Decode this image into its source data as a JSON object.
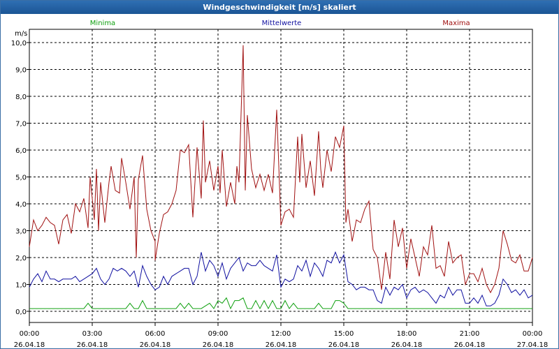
{
  "window": {
    "title": "Windgeschwindigkeit [m/s] skaliert"
  },
  "chart_data": {
    "type": "line",
    "title": "Windgeschwindigkeit [m/s] skaliert",
    "ylabel": "m/s",
    "ylim": [
      -0.3,
      10.5
    ],
    "y_ticks": [
      "0,0",
      "1,0",
      "2,0",
      "3,0",
      "4,0",
      "5,0",
      "6,0",
      "7,0",
      "8,0",
      "9,0",
      "10,0"
    ],
    "x_ticks": [
      {
        "time": "00:00",
        "date": "26.04.18"
      },
      {
        "time": "03:00",
        "date": "26.04.18"
      },
      {
        "time": "06:00",
        "date": "26.04.18"
      },
      {
        "time": "09:00",
        "date": "26.04.18"
      },
      {
        "time": "12:00",
        "date": "26.04.18"
      },
      {
        "time": "15:00",
        "date": "26.04.18"
      },
      {
        "time": "18:00",
        "date": "26.04.18"
      },
      {
        "time": "21:00",
        "date": "26.04.18"
      },
      {
        "time": "00:00",
        "date": "27.04.18"
      }
    ],
    "x_hours_range": [
      0,
      24
    ],
    "grid": true,
    "series": [
      {
        "name": "Maxima",
        "color": "#a01010",
        "points": [
          [
            0.0,
            2.4
          ],
          [
            0.2,
            3.4
          ],
          [
            0.4,
            3.0
          ],
          [
            0.6,
            3.2
          ],
          [
            0.8,
            3.5
          ],
          [
            1.0,
            3.3
          ],
          [
            1.2,
            3.2
          ],
          [
            1.4,
            2.5
          ],
          [
            1.6,
            3.4
          ],
          [
            1.8,
            3.6
          ],
          [
            2.0,
            2.9
          ],
          [
            2.2,
            4.0
          ],
          [
            2.4,
            3.7
          ],
          [
            2.6,
            4.2
          ],
          [
            2.8,
            3.1
          ],
          [
            2.9,
            5.0
          ],
          [
            3.1,
            3.4
          ],
          [
            3.2,
            5.3
          ],
          [
            3.3,
            3.0
          ],
          [
            3.4,
            4.8
          ],
          [
            3.6,
            3.3
          ],
          [
            3.8,
            4.8
          ],
          [
            3.9,
            5.4
          ],
          [
            4.1,
            4.5
          ],
          [
            4.3,
            4.4
          ],
          [
            4.4,
            5.7
          ],
          [
            4.6,
            4.8
          ],
          [
            4.8,
            3.8
          ],
          [
            5.0,
            5.0
          ],
          [
            5.1,
            2.0
          ],
          [
            5.2,
            4.9
          ],
          [
            5.4,
            5.8
          ],
          [
            5.6,
            3.8
          ],
          [
            5.8,
            3.0
          ],
          [
            6.0,
            2.6
          ],
          [
            6.0,
            1.9
          ],
          [
            6.2,
            2.9
          ],
          [
            6.4,
            3.6
          ],
          [
            6.6,
            3.7
          ],
          [
            6.8,
            4.0
          ],
          [
            7.0,
            4.5
          ],
          [
            7.2,
            6.0
          ],
          [
            7.4,
            5.9
          ],
          [
            7.6,
            6.2
          ],
          [
            7.8,
            3.5
          ],
          [
            8.0,
            6.1
          ],
          [
            8.2,
            4.2
          ],
          [
            8.3,
            7.1
          ],
          [
            8.4,
            4.8
          ],
          [
            8.6,
            5.6
          ],
          [
            8.8,
            4.5
          ],
          [
            9.0,
            5.4
          ],
          [
            9.1,
            4.4
          ],
          [
            9.2,
            6.0
          ],
          [
            9.4,
            3.9
          ],
          [
            9.6,
            4.8
          ],
          [
            9.8,
            4.0
          ],
          [
            9.9,
            5.4
          ],
          [
            10.0,
            4.8
          ],
          [
            10.2,
            9.9
          ],
          [
            10.3,
            4.5
          ],
          [
            10.4,
            7.3
          ],
          [
            10.6,
            5.3
          ],
          [
            10.8,
            4.6
          ],
          [
            11.0,
            5.1
          ],
          [
            11.2,
            4.5
          ],
          [
            11.4,
            5.1
          ],
          [
            11.6,
            4.4
          ],
          [
            11.8,
            7.5
          ],
          [
            11.9,
            5.4
          ],
          [
            12.0,
            3.2
          ],
          [
            12.2,
            3.7
          ],
          [
            12.4,
            3.8
          ],
          [
            12.6,
            3.5
          ],
          [
            12.8,
            6.5
          ],
          [
            12.9,
            4.8
          ],
          [
            13.0,
            6.6
          ],
          [
            13.2,
            4.6
          ],
          [
            13.4,
            5.6
          ],
          [
            13.6,
            4.3
          ],
          [
            13.8,
            6.7
          ],
          [
            13.9,
            5.3
          ],
          [
            14.0,
            4.6
          ],
          [
            14.2,
            6.0
          ],
          [
            14.4,
            5.2
          ],
          [
            14.6,
            6.5
          ],
          [
            14.8,
            6.1
          ],
          [
            15.0,
            6.9
          ],
          [
            15.1,
            3.3
          ],
          [
            15.2,
            3.8
          ],
          [
            15.4,
            2.6
          ],
          [
            15.6,
            3.4
          ],
          [
            15.8,
            3.3
          ],
          [
            16.0,
            3.8
          ],
          [
            16.2,
            4.1
          ],
          [
            16.4,
            2.3
          ],
          [
            16.6,
            2.0
          ],
          [
            16.8,
            0.8
          ],
          [
            17.0,
            2.2
          ],
          [
            17.2,
            1.2
          ],
          [
            17.4,
            3.4
          ],
          [
            17.6,
            2.4
          ],
          [
            17.8,
            3.1
          ],
          [
            18.0,
            1.6
          ],
          [
            18.2,
            2.7
          ],
          [
            18.4,
            2.0
          ],
          [
            18.6,
            1.3
          ],
          [
            18.8,
            2.4
          ],
          [
            19.0,
            2.1
          ],
          [
            19.2,
            3.2
          ],
          [
            19.4,
            1.6
          ],
          [
            19.6,
            1.7
          ],
          [
            19.8,
            1.3
          ],
          [
            20.0,
            2.6
          ],
          [
            20.2,
            1.8
          ],
          [
            20.4,
            2.0
          ],
          [
            20.6,
            2.1
          ],
          [
            20.8,
            1.0
          ],
          [
            21.0,
            1.4
          ],
          [
            21.2,
            1.4
          ],
          [
            21.4,
            1.1
          ],
          [
            21.6,
            1.6
          ],
          [
            21.8,
            1.0
          ],
          [
            22.0,
            0.7
          ],
          [
            22.2,
            1.0
          ],
          [
            22.4,
            1.6
          ],
          [
            22.6,
            3.0
          ],
          [
            22.8,
            2.5
          ],
          [
            23.0,
            1.9
          ],
          [
            23.2,
            1.8
          ],
          [
            23.4,
            2.1
          ],
          [
            23.6,
            1.5
          ],
          [
            23.8,
            1.5
          ],
          [
            24.0,
            2.0
          ]
        ]
      },
      {
        "name": "Mittelwerte",
        "color": "#1010a0",
        "points": [
          [
            0.0,
            0.9
          ],
          [
            0.2,
            1.2
          ],
          [
            0.4,
            1.4
          ],
          [
            0.6,
            1.1
          ],
          [
            0.8,
            1.5
          ],
          [
            1.0,
            1.2
          ],
          [
            1.2,
            1.2
          ],
          [
            1.4,
            1.1
          ],
          [
            1.6,
            1.2
          ],
          [
            1.8,
            1.2
          ],
          [
            2.0,
            1.2
          ],
          [
            2.2,
            1.3
          ],
          [
            2.4,
            1.1
          ],
          [
            2.6,
            1.2
          ],
          [
            2.8,
            1.3
          ],
          [
            3.0,
            1.4
          ],
          [
            3.2,
            1.6
          ],
          [
            3.4,
            1.2
          ],
          [
            3.6,
            1.0
          ],
          [
            3.8,
            1.2
          ],
          [
            4.0,
            1.6
          ],
          [
            4.2,
            1.5
          ],
          [
            4.4,
            1.6
          ],
          [
            4.6,
            1.5
          ],
          [
            4.8,
            1.3
          ],
          [
            5.0,
            1.5
          ],
          [
            5.2,
            0.9
          ],
          [
            5.4,
            1.7
          ],
          [
            5.6,
            1.3
          ],
          [
            5.8,
            1.0
          ],
          [
            6.0,
            0.8
          ],
          [
            6.2,
            0.9
          ],
          [
            6.4,
            1.3
          ],
          [
            6.6,
            1.0
          ],
          [
            6.8,
            1.3
          ],
          [
            7.0,
            1.4
          ],
          [
            7.2,
            1.5
          ],
          [
            7.4,
            1.6
          ],
          [
            7.6,
            1.6
          ],
          [
            7.8,
            1.0
          ],
          [
            8.0,
            1.3
          ],
          [
            8.2,
            2.2
          ],
          [
            8.4,
            1.5
          ],
          [
            8.6,
            1.9
          ],
          [
            8.8,
            1.7
          ],
          [
            9.0,
            1.3
          ],
          [
            9.2,
            1.8
          ],
          [
            9.4,
            1.2
          ],
          [
            9.6,
            1.6
          ],
          [
            9.8,
            1.8
          ],
          [
            10.0,
            2.0
          ],
          [
            10.2,
            1.5
          ],
          [
            10.4,
            1.8
          ],
          [
            10.6,
            1.7
          ],
          [
            10.8,
            1.7
          ],
          [
            11.0,
            1.9
          ],
          [
            11.2,
            1.7
          ],
          [
            11.4,
            1.6
          ],
          [
            11.6,
            1.5
          ],
          [
            11.8,
            2.1
          ],
          [
            12.0,
            0.9
          ],
          [
            12.2,
            1.2
          ],
          [
            12.4,
            1.1
          ],
          [
            12.6,
            1.2
          ],
          [
            12.8,
            1.7
          ],
          [
            13.0,
            1.5
          ],
          [
            13.2,
            1.9
          ],
          [
            13.4,
            1.3
          ],
          [
            13.6,
            1.8
          ],
          [
            13.8,
            1.6
          ],
          [
            14.0,
            1.3
          ],
          [
            14.2,
            1.9
          ],
          [
            14.4,
            1.8
          ],
          [
            14.6,
            2.2
          ],
          [
            14.8,
            1.8
          ],
          [
            15.0,
            2.1
          ],
          [
            15.2,
            1.1
          ],
          [
            15.4,
            1.0
          ],
          [
            15.6,
            0.8
          ],
          [
            15.8,
            0.9
          ],
          [
            16.0,
            0.9
          ],
          [
            16.2,
            0.8
          ],
          [
            16.4,
            0.8
          ],
          [
            16.6,
            0.4
          ],
          [
            16.8,
            0.3
          ],
          [
            17.0,
            0.9
          ],
          [
            17.2,
            0.6
          ],
          [
            17.4,
            0.9
          ],
          [
            17.6,
            0.8
          ],
          [
            17.8,
            1.0
          ],
          [
            18.0,
            0.5
          ],
          [
            18.2,
            0.8
          ],
          [
            18.4,
            0.9
          ],
          [
            18.6,
            0.7
          ],
          [
            18.8,
            0.8
          ],
          [
            19.0,
            0.7
          ],
          [
            19.2,
            0.5
          ],
          [
            19.4,
            0.3
          ],
          [
            19.6,
            0.6
          ],
          [
            19.8,
            0.5
          ],
          [
            20.0,
            0.9
          ],
          [
            20.2,
            0.6
          ],
          [
            20.4,
            0.8
          ],
          [
            20.6,
            0.8
          ],
          [
            20.8,
            0.3
          ],
          [
            21.0,
            0.3
          ],
          [
            21.2,
            0.5
          ],
          [
            21.4,
            0.3
          ],
          [
            21.6,
            0.6
          ],
          [
            21.8,
            0.2
          ],
          [
            22.0,
            0.2
          ],
          [
            22.2,
            0.3
          ],
          [
            22.4,
            0.6
          ],
          [
            22.6,
            1.2
          ],
          [
            22.8,
            1.0
          ],
          [
            23.0,
            0.7
          ],
          [
            23.2,
            0.8
          ],
          [
            23.4,
            0.6
          ],
          [
            23.6,
            0.8
          ],
          [
            23.8,
            0.5
          ],
          [
            24.0,
            0.6
          ]
        ]
      },
      {
        "name": "Minima",
        "color": "#10a010",
        "points": [
          [
            0.0,
            0.1
          ],
          [
            2.6,
            0.1
          ],
          [
            2.8,
            0.3
          ],
          [
            3.0,
            0.1
          ],
          [
            4.6,
            0.1
          ],
          [
            4.8,
            0.3
          ],
          [
            5.0,
            0.1
          ],
          [
            5.2,
            0.1
          ],
          [
            5.4,
            0.4
          ],
          [
            5.6,
            0.1
          ],
          [
            7.0,
            0.1
          ],
          [
            7.2,
            0.3
          ],
          [
            7.4,
            0.1
          ],
          [
            7.6,
            0.3
          ],
          [
            7.8,
            0.1
          ],
          [
            8.0,
            0.1
          ],
          [
            8.2,
            0.1
          ],
          [
            8.6,
            0.3
          ],
          [
            8.8,
            0.1
          ],
          [
            9.0,
            0.4
          ],
          [
            9.2,
            0.3
          ],
          [
            9.4,
            0.5
          ],
          [
            9.6,
            0.1
          ],
          [
            9.8,
            0.4
          ],
          [
            10.0,
            0.4
          ],
          [
            10.2,
            0.5
          ],
          [
            10.4,
            0.1
          ],
          [
            10.6,
            0.1
          ],
          [
            10.8,
            0.4
          ],
          [
            11.0,
            0.1
          ],
          [
            11.2,
            0.4
          ],
          [
            11.4,
            0.1
          ],
          [
            11.6,
            0.4
          ],
          [
            11.8,
            0.1
          ],
          [
            12.0,
            0.1
          ],
          [
            12.2,
            0.4
          ],
          [
            12.4,
            0.1
          ],
          [
            12.6,
            0.3
          ],
          [
            12.8,
            0.1
          ],
          [
            13.6,
            0.1
          ],
          [
            13.8,
            0.3
          ],
          [
            14.0,
            0.1
          ],
          [
            14.2,
            0.1
          ],
          [
            14.4,
            0.1
          ],
          [
            14.6,
            0.4
          ],
          [
            14.8,
            0.4
          ],
          [
            15.0,
            0.3
          ],
          [
            15.2,
            0.1
          ],
          [
            24.0,
            0.1
          ]
        ]
      }
    ]
  }
}
